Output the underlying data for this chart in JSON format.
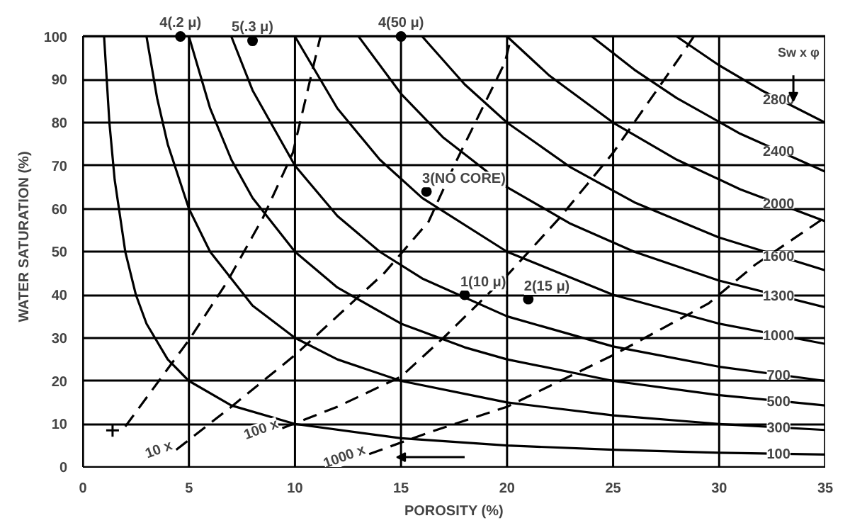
{
  "chart_data": {
    "type": "line",
    "xlabel": "POROSITY (%)",
    "ylabel": "WATER SATURATION (%)",
    "xlim": [
      0,
      35
    ],
    "ylim": [
      0,
      100
    ],
    "xticks": [
      0,
      5,
      10,
      15,
      20,
      25,
      30,
      35
    ],
    "yticks": [
      0,
      10,
      20,
      30,
      40,
      50,
      60,
      70,
      80,
      90,
      100
    ],
    "grid": true,
    "series": [
      {
        "name": "100",
        "color": "#000000",
        "line_style": "solid",
        "x": [
          1,
          1.25,
          1.5,
          2,
          2.5,
          3,
          4,
          5,
          7,
          10,
          15,
          20,
          25,
          30,
          35
        ],
        "values": [
          100,
          80,
          66.7,
          50,
          40,
          33.3,
          25,
          20,
          14.3,
          10,
          6.7,
          5,
          4,
          3.3,
          2.9
        ]
      },
      {
        "name": "300",
        "color": "#000000",
        "line_style": "solid",
        "x": [
          3,
          3.5,
          4,
          5,
          6,
          8,
          10,
          12,
          15,
          20,
          25,
          30,
          35
        ],
        "values": [
          100,
          85.7,
          75,
          60,
          50,
          37.5,
          30,
          25,
          20,
          15,
          12,
          10,
          8.6
        ]
      },
      {
        "name": "500",
        "color": "#000000",
        "line_style": "solid",
        "x": [
          5,
          6,
          7,
          8,
          10,
          12,
          15,
          18,
          20,
          25,
          30,
          35
        ],
        "values": [
          100,
          83.3,
          71.4,
          62.5,
          50,
          41.7,
          33.3,
          27.8,
          25,
          20,
          16.7,
          14.3
        ]
      },
      {
        "name": "700",
        "color": "#000000",
        "line_style": "solid",
        "x": [
          7,
          8,
          10,
          12,
          14,
          16,
          20,
          25,
          30,
          35
        ],
        "values": [
          100,
          87.5,
          70,
          58.3,
          50,
          43.8,
          35,
          28,
          23.3,
          20
        ]
      },
      {
        "name": "1000",
        "color": "#000000",
        "line_style": "solid",
        "x": [
          10,
          12,
          14,
          16,
          20,
          25,
          30,
          35
        ],
        "values": [
          100,
          83.3,
          71.4,
          62.5,
          50,
          40,
          33.3,
          28.6
        ]
      },
      {
        "name": "1300",
        "color": "#000000",
        "line_style": "solid",
        "x": [
          13,
          15,
          17,
          20,
          23,
          26,
          30,
          35
        ],
        "values": [
          100,
          86.7,
          76.5,
          65,
          56.5,
          50,
          43.3,
          37.1
        ]
      },
      {
        "name": "1600",
        "color": "#000000",
        "line_style": "solid",
        "x": [
          16,
          18,
          20,
          23,
          26,
          30,
          35
        ],
        "values": [
          100,
          88.9,
          80,
          69.6,
          61.5,
          53.3,
          45.7
        ]
      },
      {
        "name": "2000",
        "color": "#000000",
        "line_style": "solid",
        "x": [
          20,
          22,
          25,
          28,
          31,
          35
        ],
        "values": [
          100,
          90.9,
          80,
          71.4,
          64.5,
          57.1
        ]
      },
      {
        "name": "2400",
        "color": "#000000",
        "line_style": "solid",
        "x": [
          24,
          26,
          28,
          31,
          35
        ],
        "values": [
          100,
          92.3,
          85.7,
          77.4,
          68.6
        ]
      },
      {
        "name": "2800",
        "color": "#000000",
        "line_style": "solid",
        "x": [
          28,
          30,
          32,
          35
        ],
        "values": [
          100,
          93.3,
          87.5,
          80
        ]
      },
      {
        "color": "#000000",
        "line_style": "dashed",
        "x": [
          2,
          5,
          6.8,
          8.5,
          9.9,
          11.2
        ],
        "values": [
          9.4,
          29.5,
          43,
          58,
          73,
          100
        ]
      },
      {
        "name": "10 x",
        "color": "#000000",
        "line_style": "dashed",
        "x": [
          4.4,
          7,
          10,
          14.2,
          16.3,
          17.6,
          19.9,
          20.2
        ],
        "values": [
          4,
          14,
          26,
          45,
          57,
          71,
          94,
          100
        ]
      },
      {
        "name": "100 x",
        "color": "#000000",
        "line_style": "dashed",
        "x": [
          9.4,
          12,
          15,
          17,
          20,
          22.5,
          25,
          28.4,
          28.8
        ],
        "values": [
          9,
          14,
          21,
          30,
          44.5,
          58,
          73,
          97,
          100
        ]
      },
      {
        "name": "1000 x",
        "color": "#000000",
        "line_style": "dashed",
        "x": [
          13.5,
          16.3,
          20,
          25,
          29.5,
          31.7,
          35
        ],
        "values": [
          3,
          8,
          14,
          26,
          38,
          47,
          58
        ]
      },
      {
        "type": "scatter",
        "marker": "cross",
        "color": "#000000",
        "x": [
          1.4
        ],
        "values": [
          8.5
        ]
      },
      {
        "type": "scatter",
        "marker": "circle",
        "color": "#000000",
        "x": [
          4.6,
          8,
          15,
          16.2,
          18,
          21
        ],
        "values": [
          100,
          99,
          100,
          64,
          40,
          39
        ]
      }
    ],
    "annotations": [
      {
        "text": "4(.2 μ)",
        "x": 4.6,
        "y": 100
      },
      {
        "text": "5(.3 μ)",
        "x": 8,
        "y": 99
      },
      {
        "text": "4(50 μ)",
        "x": 15,
        "y": 100
      },
      {
        "text": "3(NO CORE)",
        "x": 16.2,
        "y": 64
      },
      {
        "text": "1(10 μ)",
        "x": 18,
        "y": 40
      },
      {
        "text": "2(15 μ)",
        "x": 21,
        "y": 39
      },
      "Sw x φ"
    ]
  }
}
